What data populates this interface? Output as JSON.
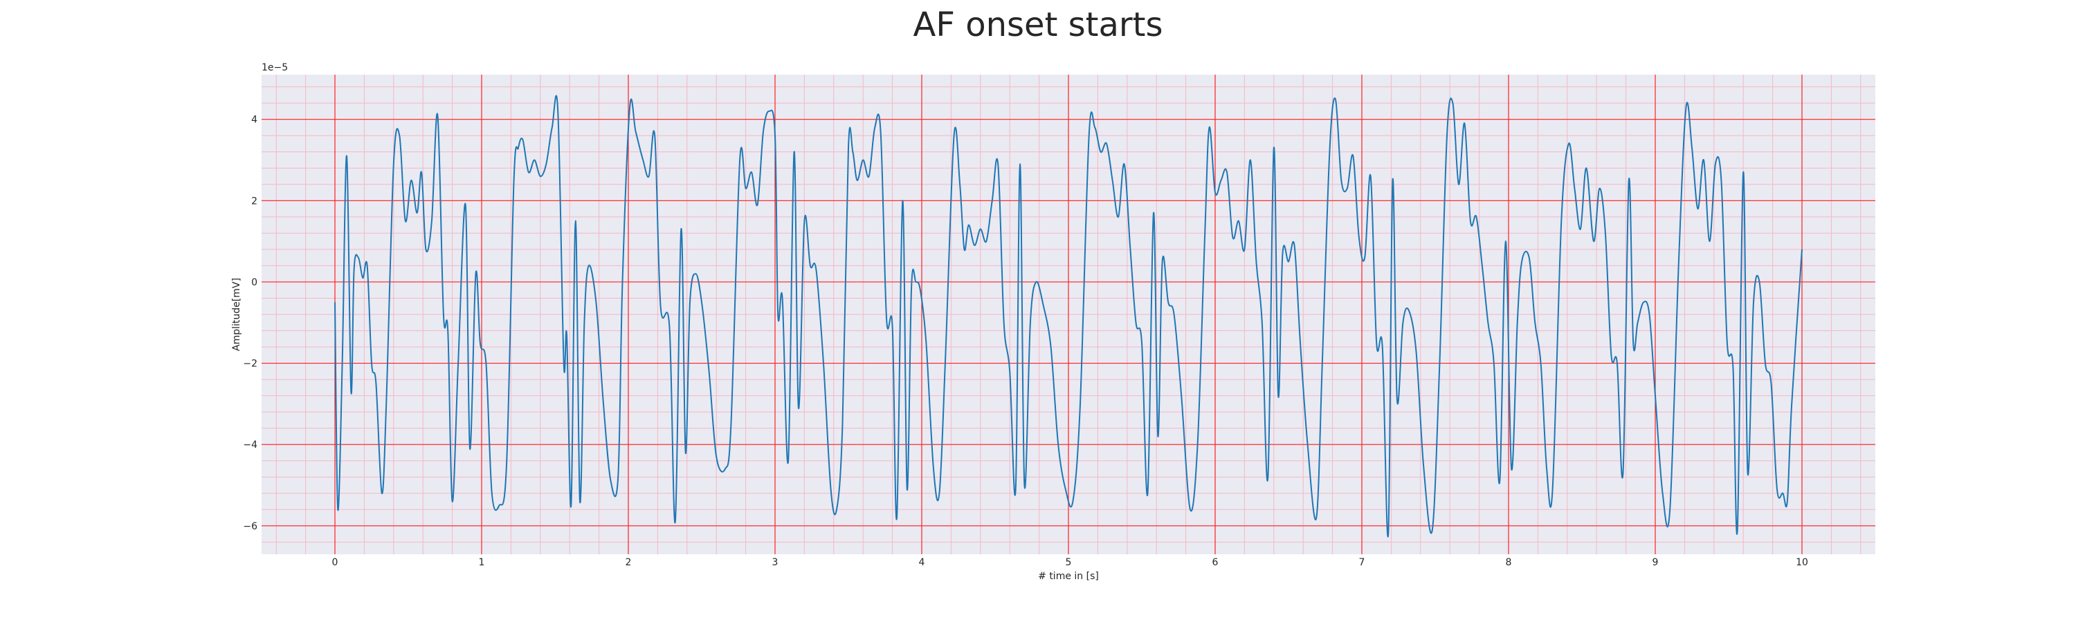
{
  "chart_data": {
    "type": "line",
    "title": "AF onset starts",
    "xlabel": "# time in [s]",
    "ylabel": "Amplitude[mV]",
    "y_offset_label": "1e−5",
    "xlim": [
      -0.5,
      10.5
    ],
    "ylim": [
      -6.7,
      5.1
    ],
    "x_ticks": [
      0,
      1,
      2,
      3,
      4,
      5,
      6,
      7,
      8,
      9,
      10
    ],
    "x_tick_labels": [
      "0",
      "1",
      "2",
      "3",
      "4",
      "5",
      "6",
      "7",
      "8",
      "9",
      "10"
    ],
    "y_ticks": [
      -6,
      -4,
      -2,
      0,
      2,
      4
    ],
    "y_tick_labels": [
      "−6",
      "−4",
      "−2",
      "0",
      "2",
      "4"
    ],
    "grid": {
      "major": true,
      "minor": true,
      "major_color": "#ff2020",
      "minor_color": "#f4b8c4"
    },
    "background": "#eaeaf2",
    "series": [
      {
        "color": "#1f77b4",
        "points": [
          [
            0.0,
            -0.5
          ],
          [
            0.02,
            -5.6
          ],
          [
            0.05,
            -2.0
          ],
          [
            0.08,
            3.1
          ],
          [
            0.11,
            -2.7
          ],
          [
            0.13,
            0.3
          ],
          [
            0.16,
            0.6
          ],
          [
            0.19,
            0.1
          ],
          [
            0.22,
            0.4
          ],
          [
            0.25,
            -2.0
          ],
          [
            0.28,
            -2.5
          ],
          [
            0.32,
            -5.2
          ],
          [
            0.35,
            -3.0
          ],
          [
            0.4,
            2.9
          ],
          [
            0.44,
            3.6
          ],
          [
            0.48,
            1.5
          ],
          [
            0.52,
            2.5
          ],
          [
            0.56,
            1.7
          ],
          [
            0.59,
            2.7
          ],
          [
            0.62,
            0.8
          ],
          [
            0.66,
            1.5
          ],
          [
            0.7,
            4.1
          ],
          [
            0.74,
            -0.8
          ],
          [
            0.77,
            -1.2
          ],
          [
            0.8,
            -5.4
          ],
          [
            0.84,
            -2.0
          ],
          [
            0.89,
            1.9
          ],
          [
            0.92,
            -4.1
          ],
          [
            0.96,
            0.2
          ],
          [
            0.99,
            -1.5
          ],
          [
            1.03,
            -2.0
          ],
          [
            1.07,
            -5.2
          ],
          [
            1.12,
            -5.5
          ],
          [
            1.17,
            -4.5
          ],
          [
            1.22,
            2.5
          ],
          [
            1.25,
            3.3
          ],
          [
            1.28,
            3.5
          ],
          [
            1.32,
            2.7
          ],
          [
            1.36,
            3.0
          ],
          [
            1.4,
            2.6
          ],
          [
            1.44,
            2.9
          ],
          [
            1.48,
            3.8
          ],
          [
            1.52,
            4.2
          ],
          [
            1.56,
            -2.0
          ],
          [
            1.58,
            -1.3
          ],
          [
            1.61,
            -5.5
          ],
          [
            1.64,
            1.5
          ],
          [
            1.67,
            -5.4
          ],
          [
            1.7,
            -1.0
          ],
          [
            1.73,
            0.4
          ],
          [
            1.78,
            -0.5
          ],
          [
            1.83,
            -3.0
          ],
          [
            1.88,
            -4.9
          ],
          [
            1.93,
            -4.8
          ],
          [
            1.96,
            0.0
          ],
          [
            2.01,
            4.3
          ],
          [
            2.05,
            3.7
          ],
          [
            2.1,
            3.0
          ],
          [
            2.14,
            2.6
          ],
          [
            2.18,
            3.6
          ],
          [
            2.22,
            -0.6
          ],
          [
            2.28,
            -1.1
          ],
          [
            2.32,
            -5.9
          ],
          [
            2.36,
            1.3
          ],
          [
            2.39,
            -4.2
          ],
          [
            2.42,
            -0.5
          ],
          [
            2.46,
            0.2
          ],
          [
            2.5,
            -0.5
          ],
          [
            2.55,
            -2.2
          ],
          [
            2.6,
            -4.3
          ],
          [
            2.66,
            -4.6
          ],
          [
            2.7,
            -3.5
          ],
          [
            2.76,
            3.0
          ],
          [
            2.8,
            2.3
          ],
          [
            2.84,
            2.7
          ],
          [
            2.88,
            1.9
          ],
          [
            2.92,
            3.7
          ],
          [
            2.96,
            4.2
          ],
          [
            3.0,
            3.6
          ],
          [
            3.02,
            -0.8
          ],
          [
            3.05,
            -0.4
          ],
          [
            3.09,
            -4.4
          ],
          [
            3.13,
            3.2
          ],
          [
            3.16,
            -3.1
          ],
          [
            3.2,
            1.5
          ],
          [
            3.24,
            0.4
          ],
          [
            3.28,
            0.3
          ],
          [
            3.33,
            -2.0
          ],
          [
            3.38,
            -5.1
          ],
          [
            3.42,
            -5.6
          ],
          [
            3.46,
            -3.5
          ],
          [
            3.5,
            3.3
          ],
          [
            3.53,
            3.2
          ],
          [
            3.56,
            2.5
          ],
          [
            3.6,
            3.0
          ],
          [
            3.64,
            2.6
          ],
          [
            3.68,
            3.8
          ],
          [
            3.72,
            3.7
          ],
          [
            3.76,
            -0.9
          ],
          [
            3.8,
            -1.1
          ],
          [
            3.83,
            -5.8
          ],
          [
            3.87,
            2.0
          ],
          [
            3.9,
            -5.1
          ],
          [
            3.93,
            -0.1
          ],
          [
            3.96,
            0.0
          ],
          [
            3.99,
            -0.2
          ],
          [
            4.03,
            -1.5
          ],
          [
            4.08,
            -4.6
          ],
          [
            4.12,
            -5.2
          ],
          [
            4.16,
            -2.0
          ],
          [
            4.22,
            3.6
          ],
          [
            4.26,
            2.4
          ],
          [
            4.29,
            0.8
          ],
          [
            4.32,
            1.4
          ],
          [
            4.36,
            0.9
          ],
          [
            4.4,
            1.3
          ],
          [
            4.44,
            1.0
          ],
          [
            4.48,
            2.0
          ],
          [
            4.52,
            2.9
          ],
          [
            4.56,
            -1.0
          ],
          [
            4.6,
            -2.2
          ],
          [
            4.64,
            -5.1
          ],
          [
            4.67,
            2.9
          ],
          [
            4.7,
            -5.0
          ],
          [
            4.74,
            -1.0
          ],
          [
            4.78,
            0.0
          ],
          [
            4.83,
            -0.6
          ],
          [
            4.88,
            -1.6
          ],
          [
            4.93,
            -4.0
          ],
          [
            4.98,
            -5.1
          ],
          [
            5.03,
            -5.4
          ],
          [
            5.08,
            -3.0
          ],
          [
            5.14,
            3.6
          ],
          [
            5.18,
            3.8
          ],
          [
            5.22,
            3.2
          ],
          [
            5.26,
            3.4
          ],
          [
            5.3,
            2.5
          ],
          [
            5.34,
            1.6
          ],
          [
            5.38,
            2.9
          ],
          [
            5.42,
            0.9
          ],
          [
            5.46,
            -1.0
          ],
          [
            5.5,
            -1.5
          ],
          [
            5.54,
            -5.2
          ],
          [
            5.58,
            1.7
          ],
          [
            5.61,
            -3.8
          ],
          [
            5.64,
            0.5
          ],
          [
            5.68,
            -0.5
          ],
          [
            5.72,
            -0.8
          ],
          [
            5.77,
            -2.8
          ],
          [
            5.83,
            -5.6
          ],
          [
            5.88,
            -4.0
          ],
          [
            5.93,
            1.2
          ],
          [
            5.96,
            3.8
          ],
          [
            6.0,
            2.2
          ],
          [
            6.04,
            2.5
          ],
          [
            6.08,
            2.7
          ],
          [
            6.12,
            1.1
          ],
          [
            6.16,
            1.5
          ],
          [
            6.2,
            0.8
          ],
          [
            6.24,
            3.0
          ],
          [
            6.28,
            0.5
          ],
          [
            6.32,
            -1.0
          ],
          [
            6.36,
            -4.8
          ],
          [
            6.4,
            3.3
          ],
          [
            6.43,
            -2.8
          ],
          [
            6.46,
            0.7
          ],
          [
            6.5,
            0.5
          ],
          [
            6.54,
            0.9
          ],
          [
            6.58,
            -1.5
          ],
          [
            6.63,
            -4.0
          ],
          [
            6.69,
            -5.8
          ],
          [
            6.73,
            -2.0
          ],
          [
            6.78,
            3.2
          ],
          [
            6.82,
            4.5
          ],
          [
            6.86,
            2.5
          ],
          [
            6.9,
            2.3
          ],
          [
            6.94,
            3.1
          ],
          [
            6.98,
            1.1
          ],
          [
            7.02,
            0.6
          ],
          [
            7.06,
            2.6
          ],
          [
            7.1,
            -1.5
          ],
          [
            7.14,
            -1.6
          ],
          [
            7.18,
            -6.2
          ],
          [
            7.21,
            2.5
          ],
          [
            7.24,
            -2.9
          ],
          [
            7.28,
            -1.0
          ],
          [
            7.32,
            -0.7
          ],
          [
            7.37,
            -1.7
          ],
          [
            7.42,
            -4.5
          ],
          [
            7.48,
            -6.1
          ],
          [
            7.53,
            -2.0
          ],
          [
            7.58,
            3.6
          ],
          [
            7.62,
            4.4
          ],
          [
            7.66,
            2.4
          ],
          [
            7.7,
            3.9
          ],
          [
            7.74,
            1.5
          ],
          [
            7.78,
            1.6
          ],
          [
            7.82,
            0.4
          ],
          [
            7.86,
            -1.0
          ],
          [
            7.9,
            -2.0
          ],
          [
            7.94,
            -4.9
          ],
          [
            7.98,
            1.0
          ],
          [
            8.02,
            -4.6
          ],
          [
            8.06,
            -1.0
          ],
          [
            8.09,
            0.5
          ],
          [
            8.14,
            0.6
          ],
          [
            8.18,
            -1.0
          ],
          [
            8.22,
            -2.0
          ],
          [
            8.26,
            -4.6
          ],
          [
            8.3,
            -5.1
          ],
          [
            8.36,
            1.5
          ],
          [
            8.41,
            3.4
          ],
          [
            8.45,
            2.3
          ],
          [
            8.49,
            1.3
          ],
          [
            8.53,
            2.8
          ],
          [
            8.58,
            1.0
          ],
          [
            8.62,
            2.3
          ],
          [
            8.66,
            1.2
          ],
          [
            8.7,
            -1.8
          ],
          [
            8.74,
            -2.0
          ],
          [
            8.78,
            -4.7
          ],
          [
            8.82,
            2.5
          ],
          [
            8.85,
            -1.5
          ],
          [
            8.88,
            -1.0
          ],
          [
            8.92,
            -0.5
          ],
          [
            8.96,
            -0.8
          ],
          [
            9.0,
            -2.8
          ],
          [
            9.05,
            -5.2
          ],
          [
            9.1,
            -5.6
          ],
          [
            9.16,
            0.5
          ],
          [
            9.21,
            4.3
          ],
          [
            9.25,
            3.3
          ],
          [
            9.29,
            1.8
          ],
          [
            9.33,
            3.0
          ],
          [
            9.37,
            1.0
          ],
          [
            9.41,
            2.9
          ],
          [
            9.45,
            2.5
          ],
          [
            9.49,
            -1.5
          ],
          [
            9.53,
            -2.1
          ],
          [
            9.56,
            -6.1
          ],
          [
            9.6,
            2.7
          ],
          [
            9.63,
            -4.7
          ],
          [
            9.67,
            -0.5
          ],
          [
            9.71,
            0.0
          ],
          [
            9.75,
            -2.0
          ],
          [
            9.79,
            -2.5
          ],
          [
            9.83,
            -5.1
          ],
          [
            9.87,
            -5.2
          ],
          [
            9.9,
            -5.4
          ],
          [
            9.93,
            -3.0
          ],
          [
            10.0,
            0.8
          ]
        ]
      }
    ]
  }
}
